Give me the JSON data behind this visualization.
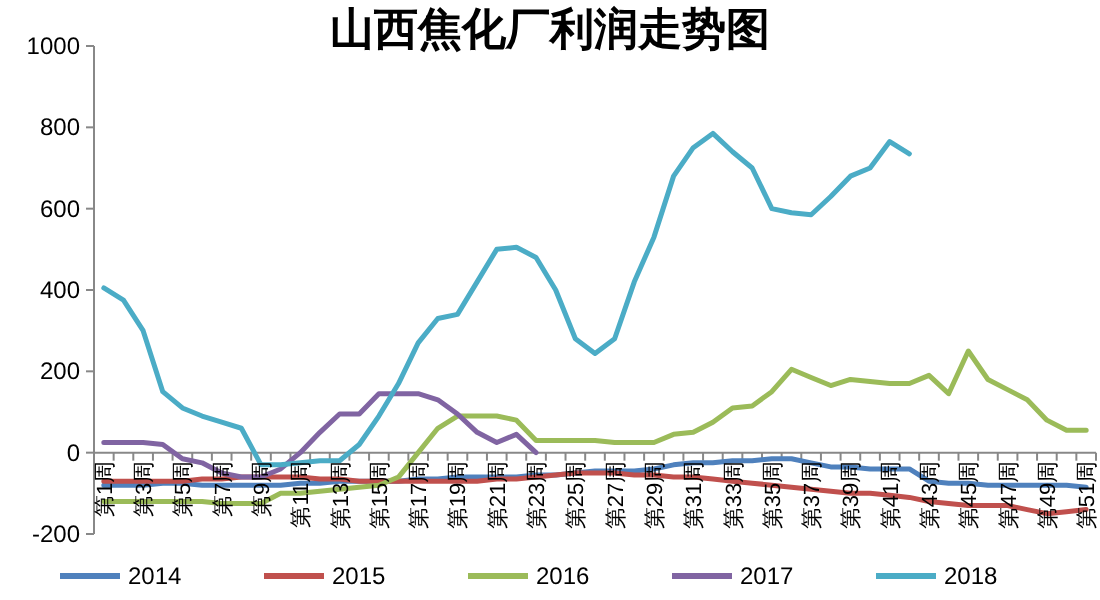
{
  "chart_data": {
    "type": "line",
    "title": "山西焦化厂利润走势图",
    "categories": [
      "第1周",
      null,
      "第3周",
      null,
      "第5周",
      null,
      "第7周",
      null,
      "第9周",
      null,
      "第11周",
      null,
      "第13周",
      null,
      "第15周",
      null,
      "第17周",
      null,
      "第19周",
      null,
      "第21周",
      null,
      "第23周",
      null,
      "第25周",
      null,
      "第27周",
      null,
      "第29周",
      null,
      "第31周",
      null,
      "第33周",
      null,
      "第35周",
      null,
      "第37周",
      null,
      "第39周",
      null,
      "第41周",
      null,
      "第43周",
      null,
      "第45周",
      null,
      "第47周",
      null,
      "第49周",
      null,
      "第51周"
    ],
    "series": [
      {
        "name": "2014",
        "color": "#4f81bd",
        "values": [
          -80,
          -80,
          -80,
          -75,
          -75,
          -80,
          -80,
          -80,
          -80,
          -80,
          -75,
          -75,
          -70,
          -70,
          -70,
          -70,
          -65,
          -65,
          -60,
          -60,
          -60,
          -60,
          -55,
          -55,
          -50,
          -45,
          -45,
          -45,
          -40,
          -30,
          -25,
          -25,
          -20,
          -20,
          -15,
          -15,
          -25,
          -35,
          -35,
          -40,
          -40,
          -40,
          -70,
          -75,
          -75,
          -80,
          -80,
          -80,
          -80,
          -80,
          -85
        ]
      },
      {
        "name": "2015",
        "color": "#c0504d",
        "values": [
          -70,
          -70,
          -70,
          -70,
          -70,
          -65,
          -65,
          -60,
          -60,
          -60,
          -60,
          -65,
          -65,
          -70,
          -70,
          -70,
          -70,
          -70,
          -70,
          -70,
          -65,
          -65,
          -60,
          -55,
          -50,
          -50,
          -50,
          -55,
          -55,
          -60,
          -60,
          -65,
          -70,
          -75,
          -80,
          -85,
          -90,
          -95,
          -100,
          -100,
          -105,
          -110,
          -120,
          -125,
          -130,
          -130,
          -130,
          -140,
          -150,
          -145,
          -140
        ]
      },
      {
        "name": "2016",
        "color": "#9bbb59",
        "values": [
          -120,
          -120,
          -120,
          -120,
          -120,
          -120,
          -125,
          -125,
          -125,
          -100,
          -100,
          -95,
          -90,
          -85,
          -80,
          -60,
          0,
          60,
          90,
          90,
          90,
          80,
          30,
          30,
          30,
          30,
          25,
          25,
          25,
          45,
          50,
          75,
          110,
          115,
          150,
          205,
          185,
          165,
          180,
          175,
          170,
          170,
          190,
          145,
          250,
          180,
          155,
          130,
          80,
          55,
          55
        ]
      },
      {
        "name": "2017",
        "color": "#8064a2",
        "values": [
          25,
          25,
          25,
          20,
          -15,
          -25,
          -50,
          -60,
          -60,
          -40,
          0,
          50,
          95,
          95,
          145,
          145,
          145,
          130,
          95,
          50,
          25,
          45,
          0,
          null,
          null,
          null,
          null,
          null,
          null,
          null,
          null,
          null,
          null,
          null,
          null,
          null,
          null,
          null,
          null,
          null,
          null,
          null,
          null,
          null,
          null,
          null,
          null,
          null,
          null,
          null,
          null
        ]
      },
      {
        "name": "2018",
        "color": "#4bacc6",
        "values": [
          405,
          375,
          300,
          150,
          110,
          90,
          75,
          60,
          -30,
          -30,
          -25,
          -20,
          -20,
          20,
          90,
          170,
          270,
          330,
          340,
          420,
          500,
          505,
          480,
          400,
          280,
          244,
          280,
          420,
          530,
          680,
          750,
          785,
          740,
          700,
          600,
          590,
          585,
          630,
          680,
          700,
          765,
          735,
          null,
          null,
          null,
          null,
          null,
          null,
          null,
          null,
          null
        ]
      }
    ],
    "ylim": [
      -200,
      1000
    ],
    "yticks": [
      -200,
      0,
      200,
      400,
      600,
      800,
      1000
    ],
    "grid": false,
    "legend": "bottom",
    "marker": "none",
    "line_style": "solid"
  }
}
